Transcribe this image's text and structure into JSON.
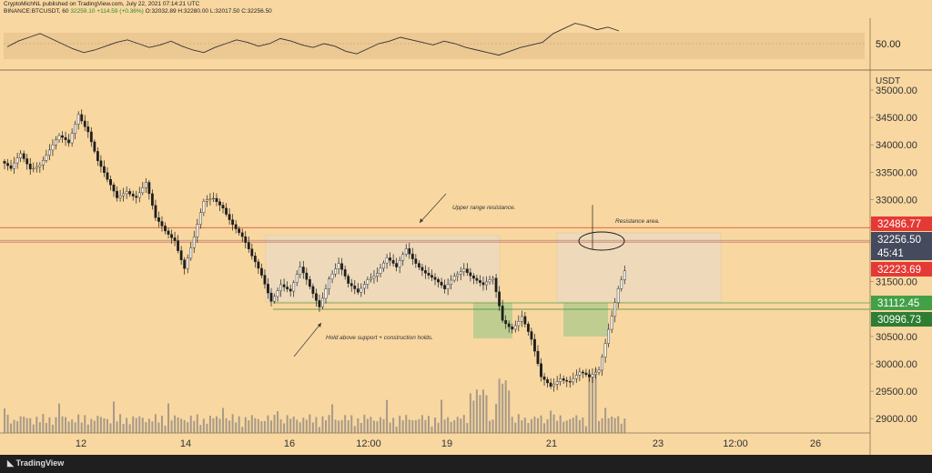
{
  "header": {
    "line1": "CryptoMichNL published on TradingView.com, July 22, 2021 07:14:21 UTC",
    "pair": "BINANCE:BTCUSDT, 60",
    "price": "32259.10",
    "change": "+114.59 (+0.36%)",
    "ohlc": "O:32032.89 H:32280.00 L:32017.50 C:32256.50"
  },
  "footer": {
    "brand": "TradingView"
  },
  "chart_data": [
    {
      "type": "line",
      "ylabels": [
        "50.00"
      ],
      "series": [
        {
          "values": [
            47.5,
            52,
            55,
            58,
            54,
            50,
            46,
            43,
            45,
            48,
            51,
            53,
            50,
            47,
            49,
            52,
            48,
            45,
            43,
            47,
            50,
            53,
            51,
            48,
            50,
            54,
            52,
            49,
            47,
            50,
            48,
            44,
            42,
            46,
            50,
            52,
            55,
            53,
            51,
            49,
            52,
            50,
            47,
            45,
            43,
            41,
            44,
            47,
            49,
            51,
            58,
            62,
            66,
            64,
            61,
            63,
            60
          ]
        }
      ]
    },
    {
      "type": "candlestick",
      "ylabel": "USDT",
      "yticks": [
        "35000.00",
        "34500.00",
        "34000.00",
        "33500.00",
        "33000.00",
        "32500.00",
        "31500.00",
        "30500.00",
        "30000.00",
        "29500.00",
        "29000.00"
      ],
      "xticks": [
        "12",
        "14",
        "16",
        "12:00",
        "19",
        "21",
        "23",
        "12:00",
        "26"
      ],
      "price_labels": [
        {
          "text": "32486.77",
          "color": "#e53935"
        },
        {
          "text": "32256.50",
          "color": "#454a5c"
        },
        {
          "text": "45:41",
          "color": "#454a5c"
        },
        {
          "text": "32223.69",
          "color": "#e53935"
        },
        {
          "text": "31112.45",
          "color": "#43a047"
        },
        {
          "text": "30996.73",
          "color": "#2e7d32"
        }
      ],
      "levels": {
        "resistance_high": 32486.77,
        "resistance_low": 32223.69,
        "support_high": 31112.45,
        "support_low": 30996.73
      },
      "annotations": [
        "Upper range resistance.",
        "Resistance area.",
        "Hold above support + construction holds."
      ],
      "close_path": [
        33700,
        33500,
        33800,
        33600,
        33700,
        33900,
        34100,
        34000,
        34600,
        34300,
        33700,
        33300,
        33000,
        33200,
        33100,
        33300,
        32600,
        32400,
        32300,
        31800,
        32300,
        32900,
        33000,
        32900,
        32600,
        32300,
        31900,
        31600,
        31200,
        31500,
        31300,
        31700,
        31400,
        31100,
        31600,
        31800,
        31400,
        31300,
        31600,
        31700,
        31900,
        31700,
        32100,
        31900,
        31700,
        31500,
        31300,
        31600,
        31800,
        31600,
        31400,
        31500,
        30800,
        30700,
        30900,
        30400,
        29700,
        29600,
        29800,
        29700,
        29800,
        29700,
        29900,
        30700,
        31400,
        31800,
        32000,
        31900,
        32200,
        32100,
        32256.5
      ]
    }
  ]
}
